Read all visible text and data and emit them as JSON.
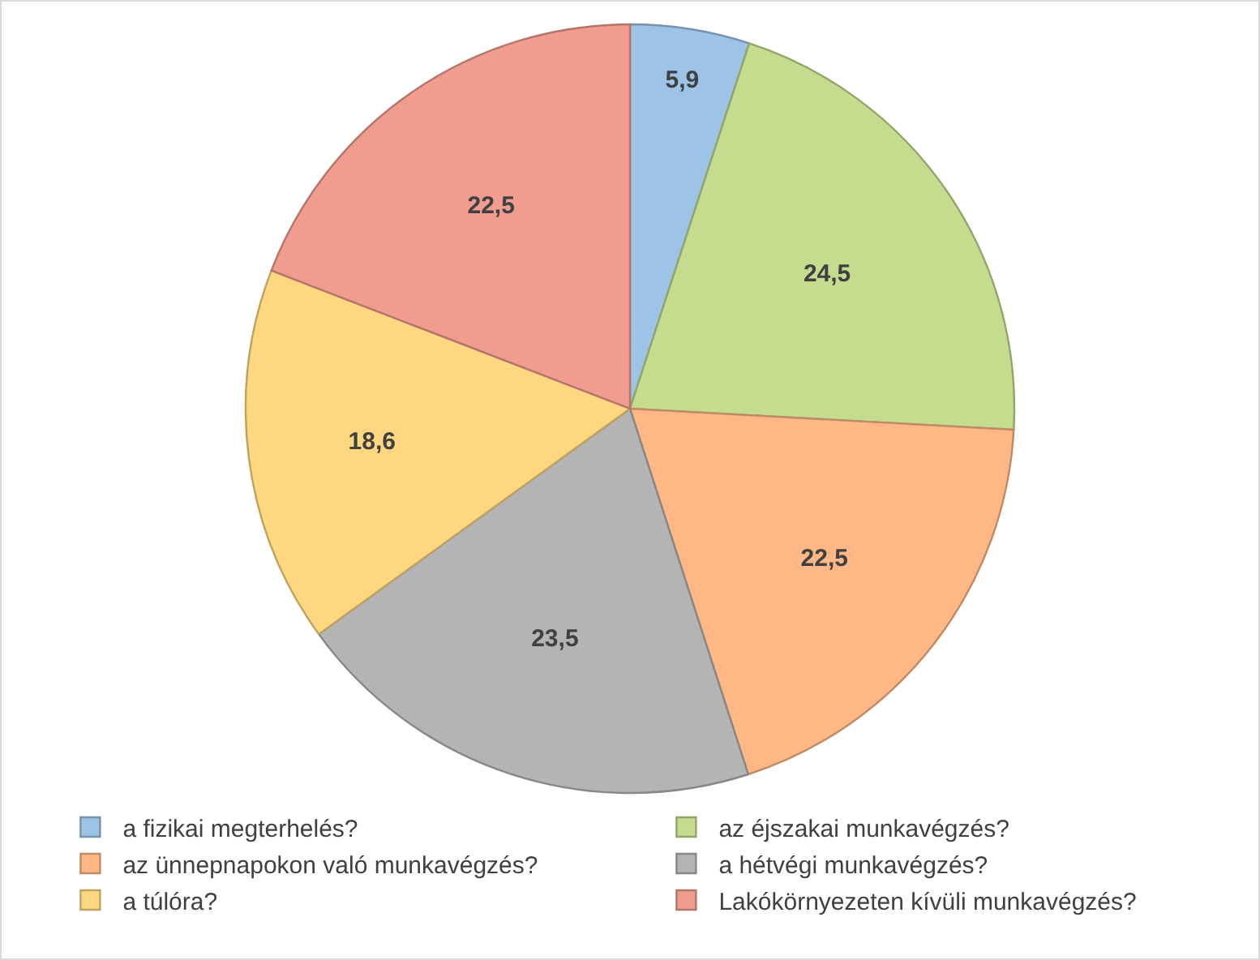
{
  "chart_data": {
    "type": "pie",
    "categories": [
      "a fizikai megterhelés?",
      "az éjszakai munkavégzés?",
      "az ünnepnapokon való munkavégzés?",
      "a hétvégi munkavégzés?",
      "a túlóra?",
      "Lakókörnyezeten kívüli munkavégzés?"
    ],
    "values": [
      5.9,
      24.5,
      22.5,
      23.5,
      18.6,
      22.5
    ],
    "value_labels": [
      "5,9",
      "24,5",
      "22,5",
      "23,5",
      "18,6",
      "22,5"
    ],
    "colors": [
      "#9dc3e6",
      "#c5dc8f",
      "#ffb885",
      "#b4b4b4",
      "#ffd780",
      "#f09c8f"
    ],
    "legend": "bottom"
  }
}
